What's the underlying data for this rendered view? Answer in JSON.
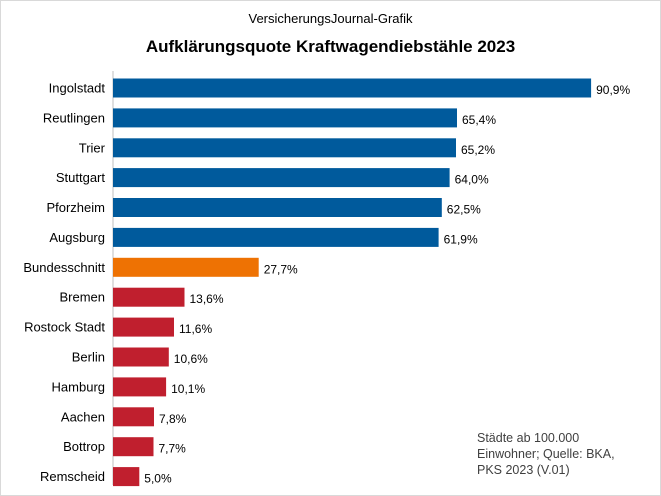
{
  "chart_data": {
    "type": "bar",
    "orientation": "horizontal",
    "subtitle": "VersicherungsJournal-Grafik",
    "title": "Aufklärungsquote Kraftwagendiebstähle 2023",
    "categories": [
      "Ingolstadt",
      "Reutlingen",
      "Trier",
      "Stuttgart",
      "Pforzheim",
      "Augsburg",
      "Bundesschnitt",
      "Bremen",
      "Rostock Stadt",
      "Berlin",
      "Hamburg",
      "Aachen",
      "Bottrop",
      "Remscheid"
    ],
    "values": [
      90.9,
      65.4,
      65.2,
      64.0,
      62.5,
      61.9,
      27.7,
      13.6,
      11.6,
      10.6,
      10.1,
      7.8,
      7.7,
      5.0
    ],
    "value_labels": [
      "90,9%",
      "65,4%",
      "65,2%",
      "64,0%",
      "62,5%",
      "61,9%",
      "27,7%",
      "13,6%",
      "11,6%",
      "10,6%",
      "10,1%",
      "7,8%",
      "7,7%",
      "5,0%"
    ],
    "bar_colors": [
      "#005a9c",
      "#005a9c",
      "#005a9c",
      "#005a9c",
      "#005a9c",
      "#005a9c",
      "#ee7203",
      "#c01f2e",
      "#c01f2e",
      "#c01f2e",
      "#c01f2e",
      "#c01f2e",
      "#c01f2e",
      "#c01f2e"
    ],
    "xlim": [
      0,
      100
    ],
    "grid": false,
    "legend": "none",
    "note_lines": [
      "Städte ab 100.000",
      "Einwohner; Quelle: BKA,",
      "PKS 2023 (V.01)"
    ]
  }
}
